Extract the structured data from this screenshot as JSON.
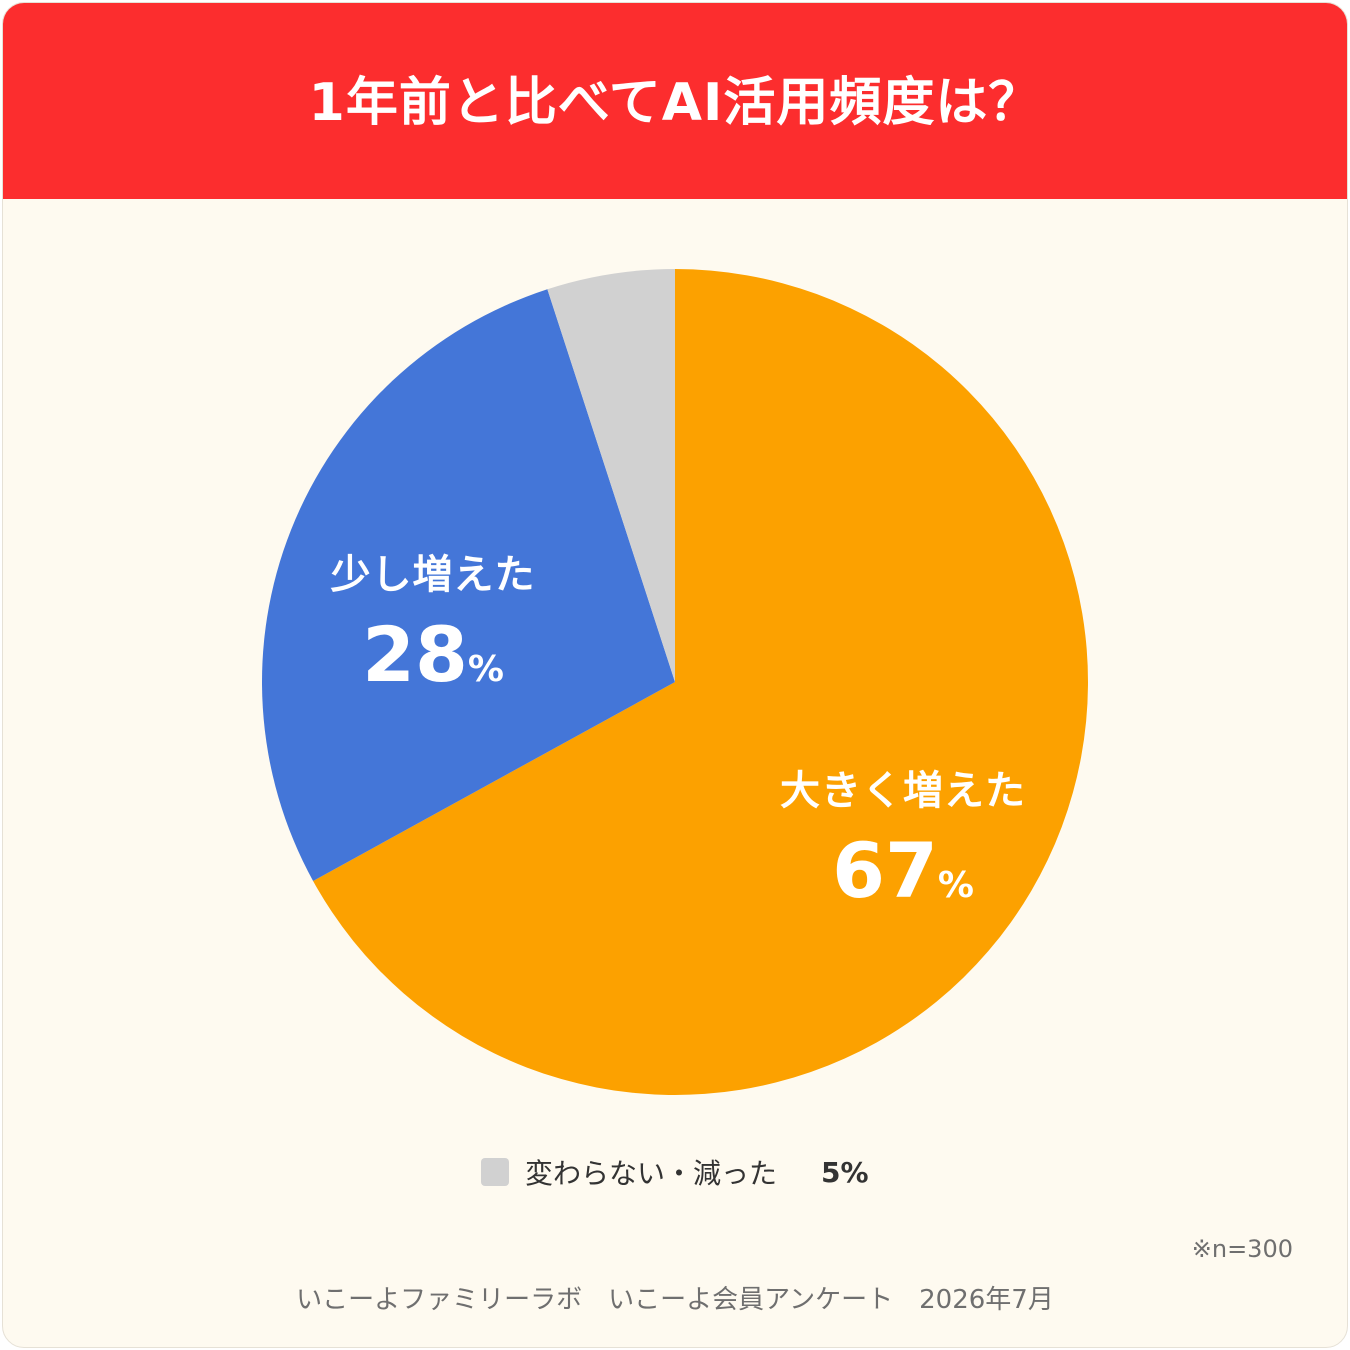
{
  "title": "1年前と比べてAI活用頻度は？",
  "chart_data": {
    "type": "pie",
    "title": "1年前と比べてAI活用頻度は？",
    "categories": [
      "大きく増えた",
      "少し増えた",
      "変わらない・減った"
    ],
    "values": [
      67,
      28,
      5
    ],
    "unit": "%",
    "colors": [
      "#fca100",
      "#4476d8",
      "#d1d1d1"
    ],
    "start": "12 o'clock",
    "direction": "clockwise",
    "legend": "bottom",
    "slices": [
      {
        "label": "大きく増えた",
        "value": "67",
        "unit": "%"
      },
      {
        "label": "少し増えた",
        "value": "28",
        "unit": "%"
      },
      {
        "label": "変わらない・減った",
        "value": "5%"
      }
    ]
  },
  "note": "※n=300",
  "source": "いこーよファミリーラボ　いこーよ会員アンケート　2026年7月"
}
